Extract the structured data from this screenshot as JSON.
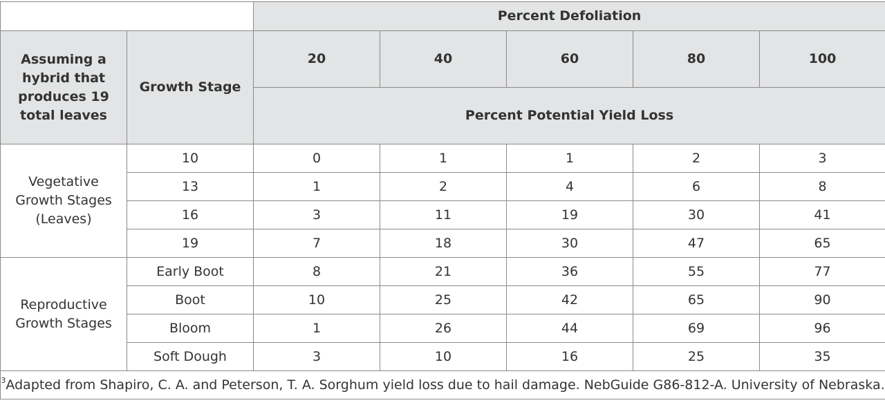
{
  "header": {
    "percent_defoliation": "Percent Defoliation",
    "assumption": "Assuming a hybrid that produces 19 total leaves",
    "growth_stage": "Growth Stage",
    "defoliation_levels": [
      "20",
      "40",
      "60",
      "80",
      "100"
    ],
    "yield_loss": "Percent Potential Yield Loss"
  },
  "groups": [
    {
      "label": "Vegetative Growth Stages (Leaves)",
      "rows": [
        {
          "stage": "10",
          "values": [
            "0",
            "1",
            "1",
            "2",
            "3"
          ]
        },
        {
          "stage": "13",
          "values": [
            "1",
            "2",
            "4",
            "6",
            "8"
          ]
        },
        {
          "stage": "16",
          "values": [
            "3",
            "11",
            "19",
            "30",
            "41"
          ]
        },
        {
          "stage": "19",
          "values": [
            "7",
            "18",
            "30",
            "47",
            "65"
          ]
        }
      ]
    },
    {
      "label": "Reproductive Growth Stages",
      "rows": [
        {
          "stage": "Early Boot",
          "values": [
            "8",
            "21",
            "36",
            "55",
            "77"
          ]
        },
        {
          "stage": "Boot",
          "values": [
            "10",
            "25",
            "42",
            "65",
            "90"
          ]
        },
        {
          "stage": "Bloom",
          "values": [
            "1",
            "26",
            "44",
            "69",
            "96"
          ]
        },
        {
          "stage": "Soft Dough",
          "values": [
            "3",
            "10",
            "16",
            "25",
            "35"
          ]
        }
      ]
    }
  ],
  "footnote": {
    "marker": "3",
    "text": "Adapted from Shapiro, C. A. and Peterson, T. A. Sorghum yield loss due to hail damage. NebGuide G86-812-A. University of Nebraska."
  }
}
